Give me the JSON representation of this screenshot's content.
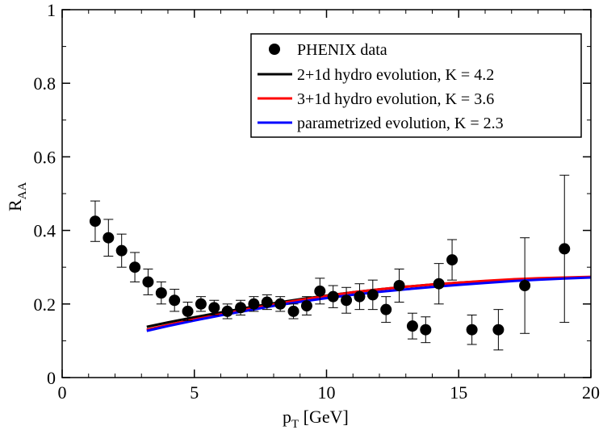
{
  "chart_data": {
    "type": "scatter",
    "title": "",
    "xlabel": {
      "main": "p",
      "sub": "T",
      "unit": " [GeV]"
    },
    "ylabel": {
      "main": "R",
      "sub": "AA"
    },
    "xlim": [
      0,
      20
    ],
    "ylim": [
      0,
      1
    ],
    "xticks": [
      0,
      5,
      10,
      15,
      20
    ],
    "xtick_labels": [
      "0",
      "5",
      "10",
      "15",
      "20"
    ],
    "yticks": [
      0,
      0.2,
      0.4,
      0.6,
      0.8,
      1
    ],
    "ytick_labels": [
      "0",
      "0.2",
      "0.4",
      "0.6",
      "0.8",
      "1"
    ],
    "grid": false,
    "legend_position": "top-right",
    "legend": [
      {
        "label": "PHENIX data",
        "kind": "marker",
        "color": "#000000"
      },
      {
        "label": "2+1d hydro evolution, K = 4.2",
        "kind": "line",
        "color": "#000000"
      },
      {
        "label": "3+1d hydro evolution, K = 3.6",
        "kind": "line",
        "color": "#ff0000"
      },
      {
        "label": "parametrized evolution, K = 2.3",
        "kind": "line",
        "color": "#0000ff"
      }
    ],
    "points": {
      "name": "PHENIX data",
      "color": "#000000",
      "x": [
        1.25,
        1.75,
        2.25,
        2.75,
        3.25,
        3.75,
        4.25,
        4.75,
        5.25,
        5.75,
        6.25,
        6.75,
        7.25,
        7.75,
        8.25,
        8.75,
        9.25,
        9.75,
        10.25,
        10.75,
        11.25,
        11.75,
        12.25,
        12.75,
        13.25,
        13.75,
        14.25,
        14.75,
        15.5,
        16.5,
        17.5,
        19.0
      ],
      "y": [
        0.425,
        0.38,
        0.345,
        0.3,
        0.26,
        0.23,
        0.21,
        0.18,
        0.2,
        0.19,
        0.18,
        0.19,
        0.2,
        0.205,
        0.2,
        0.18,
        0.195,
        0.235,
        0.22,
        0.21,
        0.22,
        0.225,
        0.185,
        0.25,
        0.14,
        0.13,
        0.255,
        0.32,
        0.13,
        0.13,
        0.25,
        0.35
      ],
      "yerr": [
        0.055,
        0.05,
        0.045,
        0.04,
        0.035,
        0.03,
        0.03,
        0.025,
        0.02,
        0.02,
        0.02,
        0.02,
        0.02,
        0.02,
        0.02,
        0.02,
        0.025,
        0.035,
        0.03,
        0.035,
        0.035,
        0.04,
        0.035,
        0.045,
        0.035,
        0.035,
        0.055,
        0.055,
        0.04,
        0.055,
        0.13,
        0.2
      ]
    },
    "series": [
      {
        "name": "2+1d hydro evolution, K = 4.2",
        "color": "#000000",
        "x": [
          3.2,
          4,
          5,
          6,
          7,
          8,
          9,
          10,
          11,
          12,
          13,
          14,
          15,
          16,
          17,
          18,
          19,
          20
        ],
        "y": [
          0.138,
          0.15,
          0.164,
          0.177,
          0.19,
          0.202,
          0.213,
          0.223,
          0.232,
          0.24,
          0.247,
          0.253,
          0.258,
          0.262,
          0.266,
          0.269,
          0.271,
          0.273
        ]
      },
      {
        "name": "3+1d hydro evolution, K = 3.6",
        "color": "#ff0000",
        "x": [
          3.2,
          4,
          5,
          6,
          7,
          8,
          9,
          10,
          11,
          12,
          13,
          14,
          15,
          16,
          17,
          18,
          19,
          20
        ],
        "y": [
          0.13,
          0.143,
          0.158,
          0.172,
          0.186,
          0.199,
          0.211,
          0.222,
          0.232,
          0.24,
          0.247,
          0.253,
          0.258,
          0.263,
          0.267,
          0.27,
          0.272,
          0.274
        ]
      },
      {
        "name": "parametrized evolution, K = 2.3",
        "color": "#0000ff",
        "x": [
          3.2,
          4,
          5,
          6,
          7,
          8,
          9,
          10,
          11,
          12,
          13,
          14,
          15,
          16,
          17,
          18,
          19,
          20
        ],
        "y": [
          0.127,
          0.14,
          0.155,
          0.169,
          0.182,
          0.195,
          0.206,
          0.216,
          0.225,
          0.233,
          0.24,
          0.246,
          0.252,
          0.257,
          0.262,
          0.266,
          0.269,
          0.272
        ]
      }
    ]
  }
}
